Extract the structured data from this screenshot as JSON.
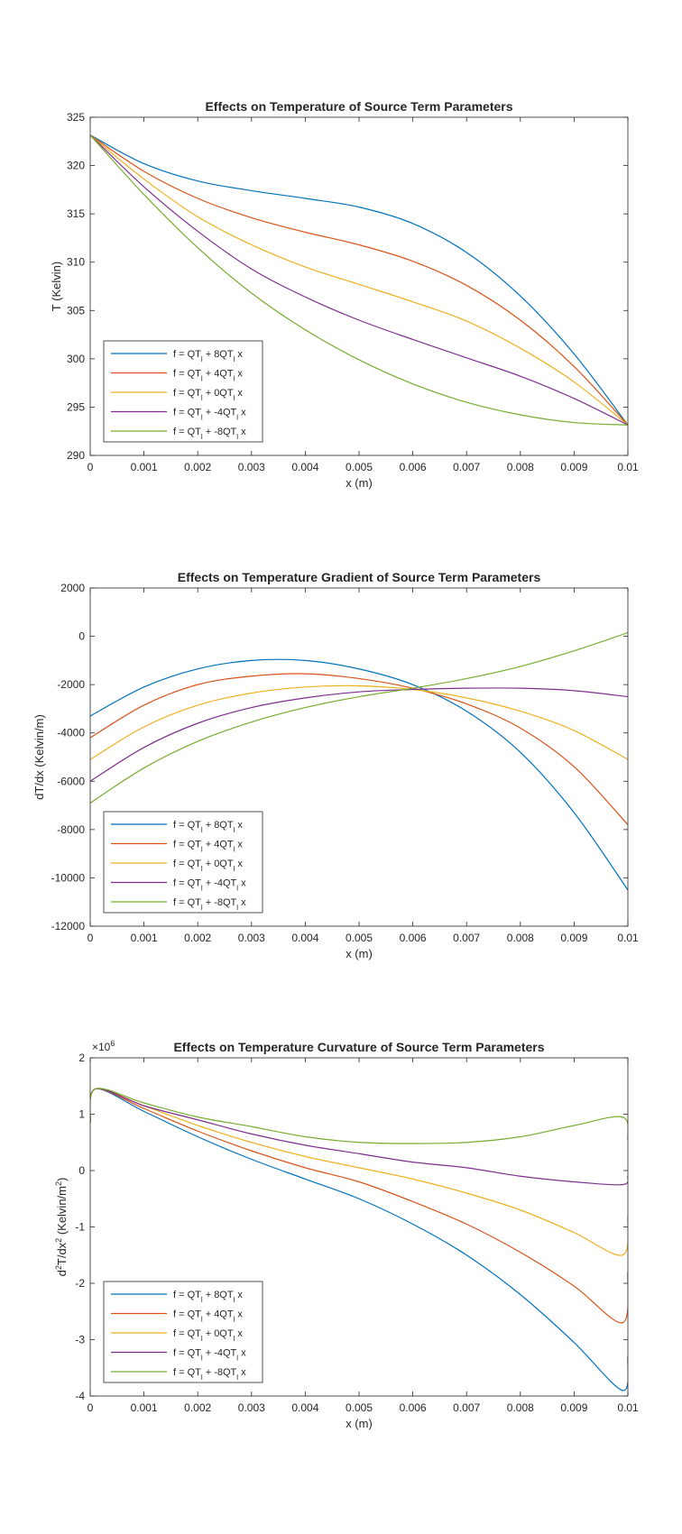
{
  "figure": {
    "legend_labels": [
      {
        "prefix": "f = QT",
        "mid": " + 8QT",
        "suffix": " x"
      },
      {
        "prefix": "f = QT",
        "mid": " + 4QT",
        "suffix": " x"
      },
      {
        "prefix": "f = QT",
        "mid": " + 0QT",
        "suffix": " x"
      },
      {
        "prefix": "f = QT",
        "mid": " + -4QT",
        "suffix": " x"
      },
      {
        "prefix": "f = QT",
        "mid": " + -8QT",
        "suffix": " x"
      }
    ],
    "legend_subscript": "l",
    "series_colors": [
      "#0072BD",
      "#D95319",
      "#EDB120",
      "#7E2F8E",
      "#77AC30"
    ]
  },
  "chart_data": [
    {
      "type": "line",
      "title": "Effects on Temperature of Source Term Parameters",
      "xlabel": "x (m)",
      "ylabel": "T (Kelvin)",
      "xlim": [
        0,
        0.01
      ],
      "ylim": [
        290,
        325
      ],
      "xticks": [
        0,
        0.001,
        0.002,
        0.003,
        0.004,
        0.005,
        0.006,
        0.007,
        0.008,
        0.009,
        0.01
      ],
      "xtick_labels": [
        "0",
        "0.001",
        "0.002",
        "0.003",
        "0.004",
        "0.005",
        "0.006",
        "0.007",
        "0.008",
        "0.009",
        "0.01"
      ],
      "yticks": [
        290,
        295,
        300,
        305,
        310,
        315,
        320,
        325
      ],
      "ytick_labels": [
        "290",
        "295",
        "300",
        "305",
        "310",
        "315",
        "320",
        "325"
      ],
      "legend_position": "bottom-left",
      "x": [
        0,
        0.001,
        0.002,
        0.003,
        0.004,
        0.005,
        0.006,
        0.007,
        0.008,
        0.009,
        0.01
      ],
      "series": [
        {
          "values": [
            323.15,
            320.2,
            318.4,
            317.4,
            316.6,
            315.7,
            314.0,
            311.0,
            306.5,
            300.5,
            293.15
          ]
        },
        {
          "values": [
            323.15,
            319.4,
            316.6,
            314.6,
            313.1,
            311.8,
            310.1,
            307.6,
            304.0,
            299.2,
            293.15
          ]
        },
        {
          "values": [
            323.15,
            318.6,
            314.7,
            311.8,
            309.5,
            307.7,
            305.9,
            303.9,
            301.1,
            297.6,
            293.15
          ]
        },
        {
          "values": [
            323.15,
            317.8,
            313.2,
            309.3,
            306.4,
            304.0,
            302.0,
            300.1,
            298.2,
            295.9,
            293.15
          ]
        },
        {
          "values": [
            323.15,
            317.0,
            311.5,
            306.8,
            303.0,
            299.9,
            297.4,
            295.5,
            294.2,
            293.4,
            293.15
          ]
        }
      ]
    },
    {
      "type": "line",
      "title": "Effects on Temperature Gradient of Source Term Parameters",
      "xlabel": "x (m)",
      "ylabel": "dT/dx (Kelvin/m)",
      "xlim": [
        0,
        0.01
      ],
      "ylim": [
        -12000,
        2000
      ],
      "xticks": [
        0,
        0.001,
        0.002,
        0.003,
        0.004,
        0.005,
        0.006,
        0.007,
        0.008,
        0.009,
        0.01
      ],
      "xtick_labels": [
        "0",
        "0.001",
        "0.002",
        "0.003",
        "0.004",
        "0.005",
        "0.006",
        "0.007",
        "0.008",
        "0.009",
        "0.01"
      ],
      "yticks": [
        -12000,
        -10000,
        -8000,
        -6000,
        -4000,
        -2000,
        0,
        2000
      ],
      "ytick_labels": [
        "-12000",
        "-10000",
        "-8000",
        "-6000",
        "-4000",
        "-2000",
        "0",
        "2000"
      ],
      "legend_position": "bottom-left",
      "x": [
        0,
        0.001,
        0.002,
        0.003,
        0.004,
        0.005,
        0.006,
        0.007,
        0.008,
        0.009,
        0.01
      ],
      "series": [
        {
          "values": [
            -3300,
            -2100,
            -1350,
            -1000,
            -1000,
            -1350,
            -2000,
            -3100,
            -4800,
            -7300,
            -10500
          ]
        },
        {
          "values": [
            -4200,
            -2850,
            -2000,
            -1650,
            -1550,
            -1750,
            -2150,
            -2800,
            -3800,
            -5400,
            -7800
          ]
        },
        {
          "values": [
            -5100,
            -3750,
            -2850,
            -2350,
            -2100,
            -2050,
            -2200,
            -2550,
            -3100,
            -3900,
            -5100
          ]
        },
        {
          "values": [
            -6000,
            -4600,
            -3600,
            -2950,
            -2550,
            -2300,
            -2200,
            -2150,
            -2150,
            -2250,
            -2500
          ]
        },
        {
          "values": [
            -6900,
            -5450,
            -4350,
            -3550,
            -2950,
            -2500,
            -2150,
            -1750,
            -1250,
            -600,
            150
          ]
        }
      ]
    },
    {
      "type": "line",
      "title": "Effects on Temperature Curvature of Source Term Parameters",
      "xlabel": "x (m)",
      "ylabel": "d2T/dx2 (Kelvin/m2)",
      "ylabel_parts": {
        "a": "d",
        "a_sup": "2",
        "b": "T/dx",
        "b_sup": "2",
        "c": " (Kelvin/m",
        "c_sup": "2",
        "d": ")"
      },
      "y_exponent": {
        "prefix": "×10",
        "power": "6"
      },
      "xlim": [
        0,
        0.01
      ],
      "ylim": [
        -4,
        2
      ],
      "y_unit_multiplier": 1000000,
      "xticks": [
        0,
        0.001,
        0.002,
        0.003,
        0.004,
        0.005,
        0.006,
        0.007,
        0.008,
        0.009,
        0.01
      ],
      "xtick_labels": [
        "0",
        "0.001",
        "0.002",
        "0.003",
        "0.004",
        "0.005",
        "0.006",
        "0.007",
        "0.008",
        "0.009",
        "0.01"
      ],
      "yticks": [
        -4,
        -3,
        -2,
        -1,
        0,
        1,
        2
      ],
      "ytick_labels": [
        "-4",
        "-3",
        "-2",
        "-1",
        "0",
        "1",
        "2"
      ],
      "legend_position": "bottom-left",
      "x": [
        0,
        0.0001,
        0.001,
        0.002,
        0.003,
        0.004,
        0.005,
        0.006,
        0.007,
        0.008,
        0.009,
        0.0099,
        0.01
      ],
      "series": [
        {
          "values": [
            0.85,
            1.45,
            1.05,
            0.6,
            0.2,
            -0.15,
            -0.5,
            -0.95,
            -1.5,
            -2.2,
            -3.05,
            -3.9,
            -3.3
          ]
        },
        {
          "values": [
            0.85,
            1.45,
            1.1,
            0.7,
            0.35,
            0.05,
            -0.2,
            -0.55,
            -0.95,
            -1.45,
            -2.05,
            -2.7,
            -1.8
          ]
        },
        {
          "values": [
            0.85,
            1.45,
            1.15,
            0.8,
            0.5,
            0.25,
            0.05,
            -0.15,
            -0.4,
            -0.7,
            -1.1,
            -1.5,
            -0.8
          ]
        },
        {
          "values": [
            0.85,
            1.45,
            1.15,
            0.9,
            0.65,
            0.45,
            0.3,
            0.15,
            0.05,
            -0.1,
            -0.2,
            -0.25,
            -0.1
          ]
        },
        {
          "values": [
            0.85,
            1.45,
            1.2,
            0.95,
            0.78,
            0.6,
            0.5,
            0.48,
            0.5,
            0.6,
            0.8,
            0.95,
            0.55
          ]
        }
      ]
    }
  ]
}
